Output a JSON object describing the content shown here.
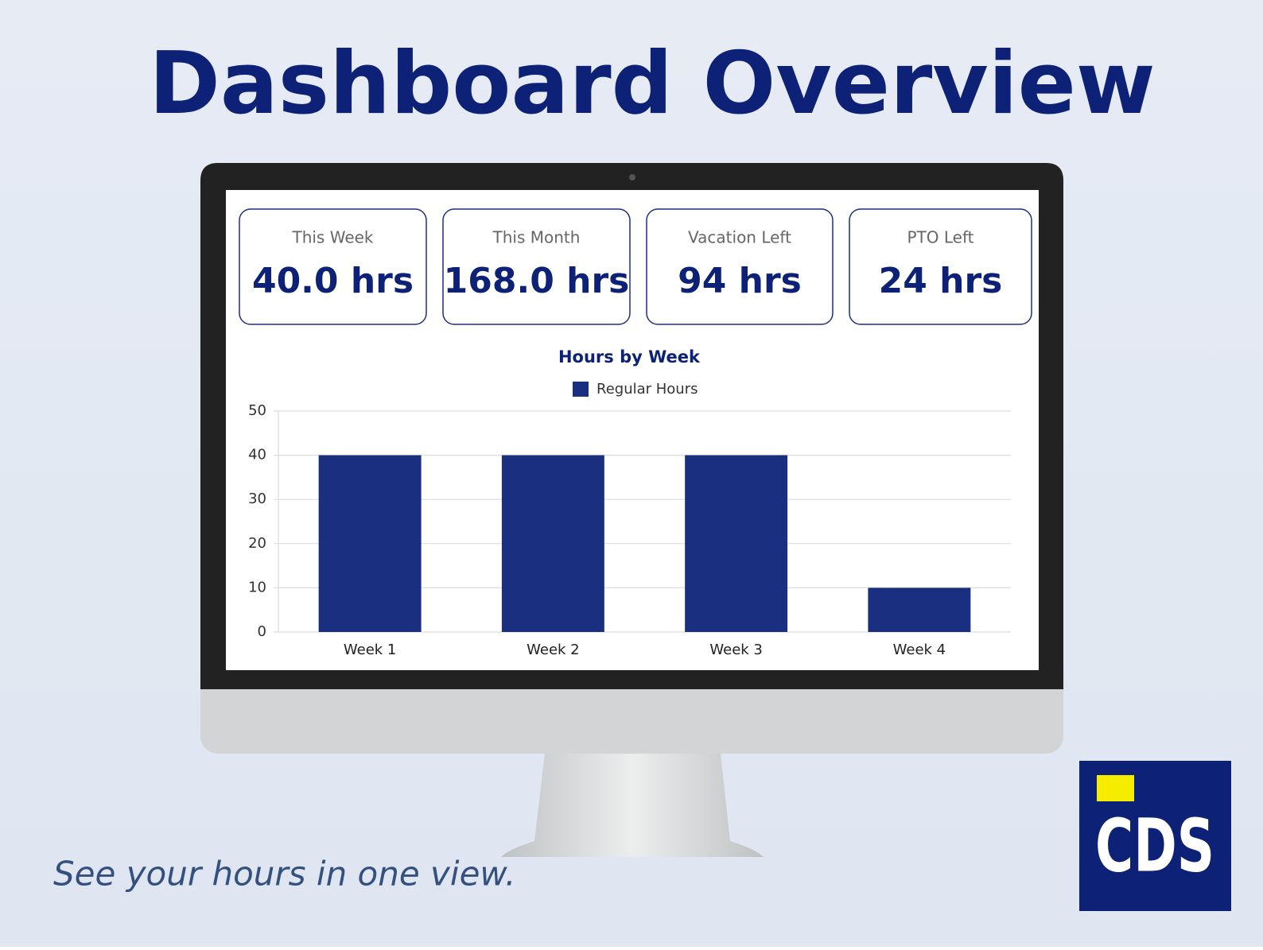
{
  "header": {
    "title": "Dashboard Overview"
  },
  "cards": [
    {
      "label": "This Week",
      "value": "40.0 hrs"
    },
    {
      "label": "This Month",
      "value": "168.0 hrs"
    },
    {
      "label": "Vacation Left",
      "value": "94 hrs"
    },
    {
      "label": "PTO Left",
      "value": "24 hrs"
    }
  ],
  "chart_data": {
    "type": "bar",
    "title": "Hours by Week",
    "categories": [
      "Week 1",
      "Week 2",
      "Week 3",
      "Week 4"
    ],
    "series": [
      {
        "name": "Regular Hours",
        "color": "#1a2f80",
        "values": [
          40,
          40,
          40,
          10
        ]
      }
    ],
    "ylim": [
      0,
      50
    ],
    "yticks": [
      0,
      10,
      20,
      30,
      40,
      50
    ],
    "grid": true
  },
  "tagline": "See your hours in one view.",
  "logo": "CDS"
}
